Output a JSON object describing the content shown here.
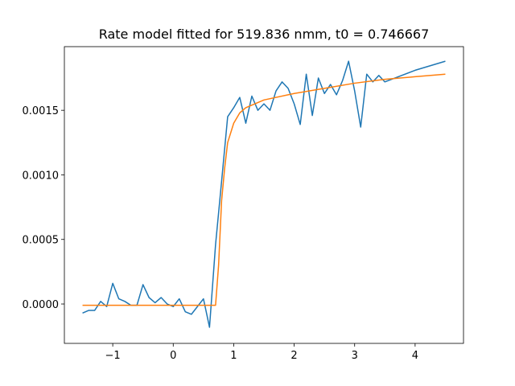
{
  "chart_data": {
    "type": "line",
    "title": "Rate model fitted for 519.836 nmm, t0 = 0.746667",
    "series": [
      {
        "color": "#1f77b4",
        "x": [
          -1.5,
          -1.4,
          -1.3,
          -1.2,
          -1.1,
          -1.0,
          -0.9,
          -0.8,
          -0.7,
          -0.6,
          -0.5,
          -0.4,
          -0.3,
          -0.2,
          -0.1,
          0.0,
          0.1,
          0.2,
          0.3,
          0.4,
          0.5,
          0.6,
          0.7,
          0.8,
          0.9,
          1.0,
          1.1,
          1.2,
          1.3,
          1.4,
          1.5,
          1.6,
          1.7,
          1.8,
          1.9,
          2.0,
          2.1,
          2.2,
          2.3,
          2.4,
          2.5,
          2.6,
          2.7,
          2.8,
          2.9,
          3.0,
          3.1,
          3.2,
          3.3,
          3.4,
          3.5,
          4.0,
          4.5
        ],
        "values": [
          -7e-05,
          -5e-05,
          -5e-05,
          2e-05,
          -2e-05,
          0.00016,
          4e-05,
          2e-05,
          -1e-05,
          -1e-05,
          0.00015,
          5e-05,
          1e-05,
          5e-05,
          0.0,
          -2e-05,
          4e-05,
          -6e-05,
          -8e-05,
          -2e-05,
          4e-05,
          -0.00018,
          0.00046,
          0.00095,
          0.00145,
          0.00152,
          0.0016,
          0.0014,
          0.00161,
          0.0015,
          0.00155,
          0.0015,
          0.00165,
          0.00172,
          0.00167,
          0.00155,
          0.00139,
          0.00178,
          0.00146,
          0.00175,
          0.00163,
          0.0017,
          0.00162,
          0.00173,
          0.00188,
          0.00165,
          0.00137,
          0.00178,
          0.00172,
          0.00177,
          0.00172,
          0.00181,
          0.00188
        ]
      },
      {
        "color": "#ff7f0e",
        "x": [
          -1.5,
          -1.0,
          0.0,
          0.7,
          0.75,
          0.8,
          0.85,
          0.9,
          1.0,
          1.1,
          1.2,
          1.5,
          2.0,
          2.5,
          3.0,
          3.5,
          4.0,
          4.5
        ],
        "values": [
          -1e-05,
          -1e-05,
          -1e-05,
          -1e-05,
          0.0003,
          0.0008,
          0.00105,
          0.00125,
          0.0014,
          0.00148,
          0.00152,
          0.00158,
          0.00163,
          0.00167,
          0.00171,
          0.00174,
          0.00176,
          0.00178
        ]
      }
    ],
    "xlim": [
      -1.8,
      4.8
    ],
    "xticks": [
      {
        "value": -1,
        "label": "−1"
      },
      0,
      1,
      2,
      3,
      4
    ],
    "ylim": [
      -0.000305,
      0.001993
    ],
    "yticks": [
      {
        "value": 0,
        "label": "0.0000"
      },
      {
        "value": 0.0005,
        "label": "0.0005"
      },
      {
        "value": 0.001,
        "label": "0.0010"
      },
      {
        "value": 0.0015,
        "label": "0.0015"
      }
    ],
    "grid": false
  }
}
